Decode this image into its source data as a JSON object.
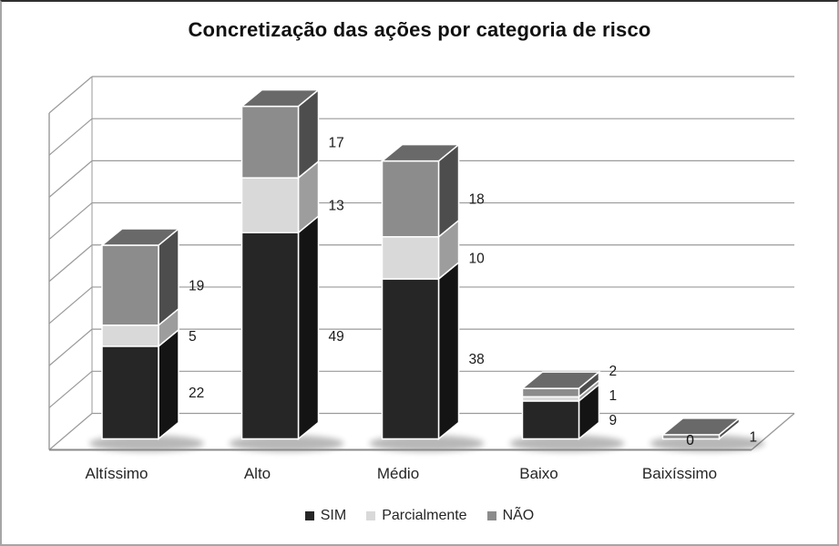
{
  "title": "Concretização das ações por categoria de risco",
  "chart_data": {
    "type": "bar",
    "subtype": "stacked-3d",
    "title": "Concretização das ações por categoria de risco",
    "categories": [
      "Altíssimo",
      "Alto",
      "Médio",
      "Baixo",
      "Baixíssimo"
    ],
    "series": [
      {
        "name": "SIM",
        "color": "#262626",
        "side_color": "#141414",
        "top_color": "#3d3d3d",
        "values": [
          22,
          49,
          38,
          9,
          0
        ]
      },
      {
        "name": "Parcialmente",
        "color": "#d9d9d9",
        "side_color": "#9d9d9d",
        "top_color": "#c4c4c4",
        "values": [
          5,
          13,
          10,
          1,
          0
        ]
      },
      {
        "name": "NÃO",
        "color": "#8c8c8c",
        "side_color": "#4d4d4d",
        "top_color": "#696969",
        "values": [
          19,
          17,
          18,
          2,
          1
        ]
      }
    ],
    "totals": [
      46,
      79,
      66,
      12,
      1
    ],
    "value_axis": {
      "min": 0,
      "max": 80,
      "major_unit": 10,
      "gridlines": true,
      "tick_labels_visible": false
    },
    "data_labels_visible": true,
    "data_labels": {
      "Altíssimo": {
        "SIM": 22,
        "Parcialmente": 5,
        "NÃO": 19
      },
      "Alto": {
        "SIM": 49,
        "Parcialmente": 13,
        "NÃO": 17
      },
      "Médio": {
        "SIM": 38,
        "Parcialmente": 10,
        "NÃO": 18
      },
      "Baixo": {
        "SIM": 9,
        "Parcialmente": 1,
        "NÃO": 2
      },
      "Baixíssimo": {
        "SIM": 0,
        "Parcialmente": 0,
        "NÃO": 1
      }
    },
    "legend_position": "bottom",
    "grid_color": "#9a9a9a",
    "label_color": "#1a1a1a"
  }
}
